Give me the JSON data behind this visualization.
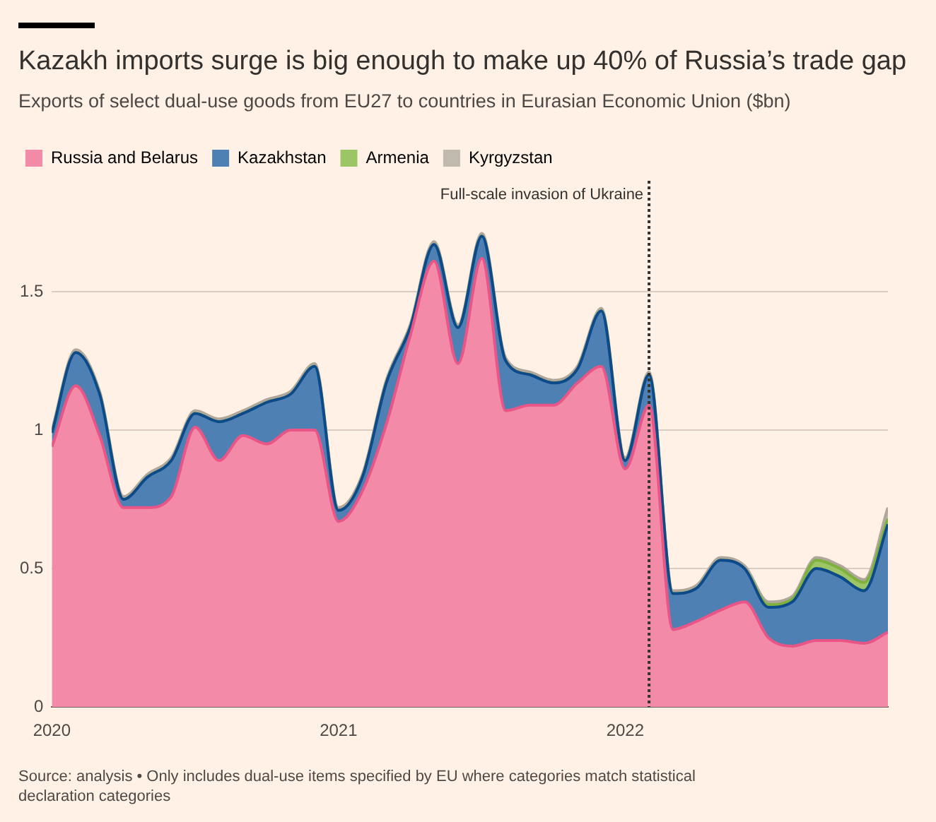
{
  "chart_data": {
    "type": "area",
    "title": "Kazakh imports surge is big enough to make up 40% of Russia’s trade gap",
    "subtitle": "Exports of select dual-use goods from EU27 to countries in Eurasian Economic Union ($bn)",
    "x": [
      "2020-01",
      "2020-02",
      "2020-03",
      "2020-04",
      "2020-05",
      "2020-06",
      "2020-07",
      "2020-08",
      "2020-09",
      "2020-10",
      "2020-11",
      "2020-12",
      "2021-01",
      "2021-02",
      "2021-03",
      "2021-04",
      "2021-05",
      "2021-06",
      "2021-07",
      "2021-08",
      "2021-09",
      "2021-10",
      "2021-11",
      "2021-12",
      "2022-01",
      "2022-02",
      "2022-03",
      "2022-04",
      "2022-05",
      "2022-06",
      "2022-07",
      "2022-08",
      "2022-09",
      "2022-10",
      "2022-11",
      "2022-12"
    ],
    "stacked": true,
    "series": [
      {
        "name": "Russia and Belarus",
        "color": "#f28aa8",
        "values": [
          0.94,
          1.16,
          0.98,
          0.72,
          0.72,
          0.76,
          1.01,
          0.89,
          0.98,
          0.95,
          1.0,
          1.0,
          0.67,
          0.78,
          1.02,
          1.34,
          1.61,
          1.24,
          1.62,
          1.07,
          1.09,
          1.09,
          1.17,
          1.23,
          0.86,
          1.09,
          0.28,
          0.31,
          0.35,
          0.38,
          0.25,
          0.22,
          0.24,
          0.24,
          0.23,
          0.27
        ]
      },
      {
        "name": "Kazakhstan",
        "color": "#4f80b3",
        "values": [
          0.05,
          0.12,
          0.15,
          0.03,
          0.11,
          0.13,
          0.05,
          0.14,
          0.08,
          0.15,
          0.13,
          0.23,
          0.04,
          0.05,
          0.15,
          0.03,
          0.06,
          0.13,
          0.08,
          0.18,
          0.11,
          0.08,
          0.05,
          0.2,
          0.03,
          0.11,
          0.13,
          0.12,
          0.18,
          0.12,
          0.11,
          0.16,
          0.26,
          0.23,
          0.19,
          0.39
        ]
      },
      {
        "name": "Armenia",
        "color": "#9cc565",
        "values": [
          0,
          0,
          0,
          0,
          0,
          0,
          0,
          0,
          0,
          0,
          0,
          0,
          0,
          0,
          0,
          0,
          0,
          0,
          0,
          0,
          0,
          0,
          0,
          0,
          0,
          0,
          0,
          0,
          0,
          0,
          0.01,
          0.01,
          0.03,
          0.03,
          0.03,
          0.02
        ]
      },
      {
        "name": "Kyrgyzstan",
        "color": "#c2b9ae",
        "values": [
          0.01,
          0.01,
          0.01,
          0.01,
          0.01,
          0.01,
          0.01,
          0.01,
          0.01,
          0.01,
          0.01,
          0.01,
          0.01,
          0.01,
          0.01,
          0.01,
          0.01,
          0.01,
          0.01,
          0.01,
          0.01,
          0.01,
          0.01,
          0.01,
          0.01,
          0.01,
          0.01,
          0.01,
          0.01,
          0.01,
          0.01,
          0.01,
          0.01,
          0.01,
          0.01,
          0.04
        ]
      }
    ],
    "xlim": [
      "2020-01",
      "2022-12"
    ],
    "xticks": [
      {
        "value": "2020",
        "label": "2020"
      },
      {
        "value": "2021",
        "label": "2021"
      },
      {
        "value": "2022",
        "label": "2022"
      }
    ],
    "ylim": [
      0,
      1.9
    ],
    "yticks": [
      0,
      0.5,
      1,
      1.5
    ],
    "grid": "y",
    "legend": "top left",
    "ref_lines": [
      {
        "axis": "x",
        "value": "2022-02",
        "label": "Full-scale invasion of Ukraine",
        "line_style": "dotted",
        "color": "#33302e"
      }
    ],
    "annotations": [
      "Source: analysis • Only includes dual-use items specified by EU where categories match statistical declaration categories"
    ]
  }
}
